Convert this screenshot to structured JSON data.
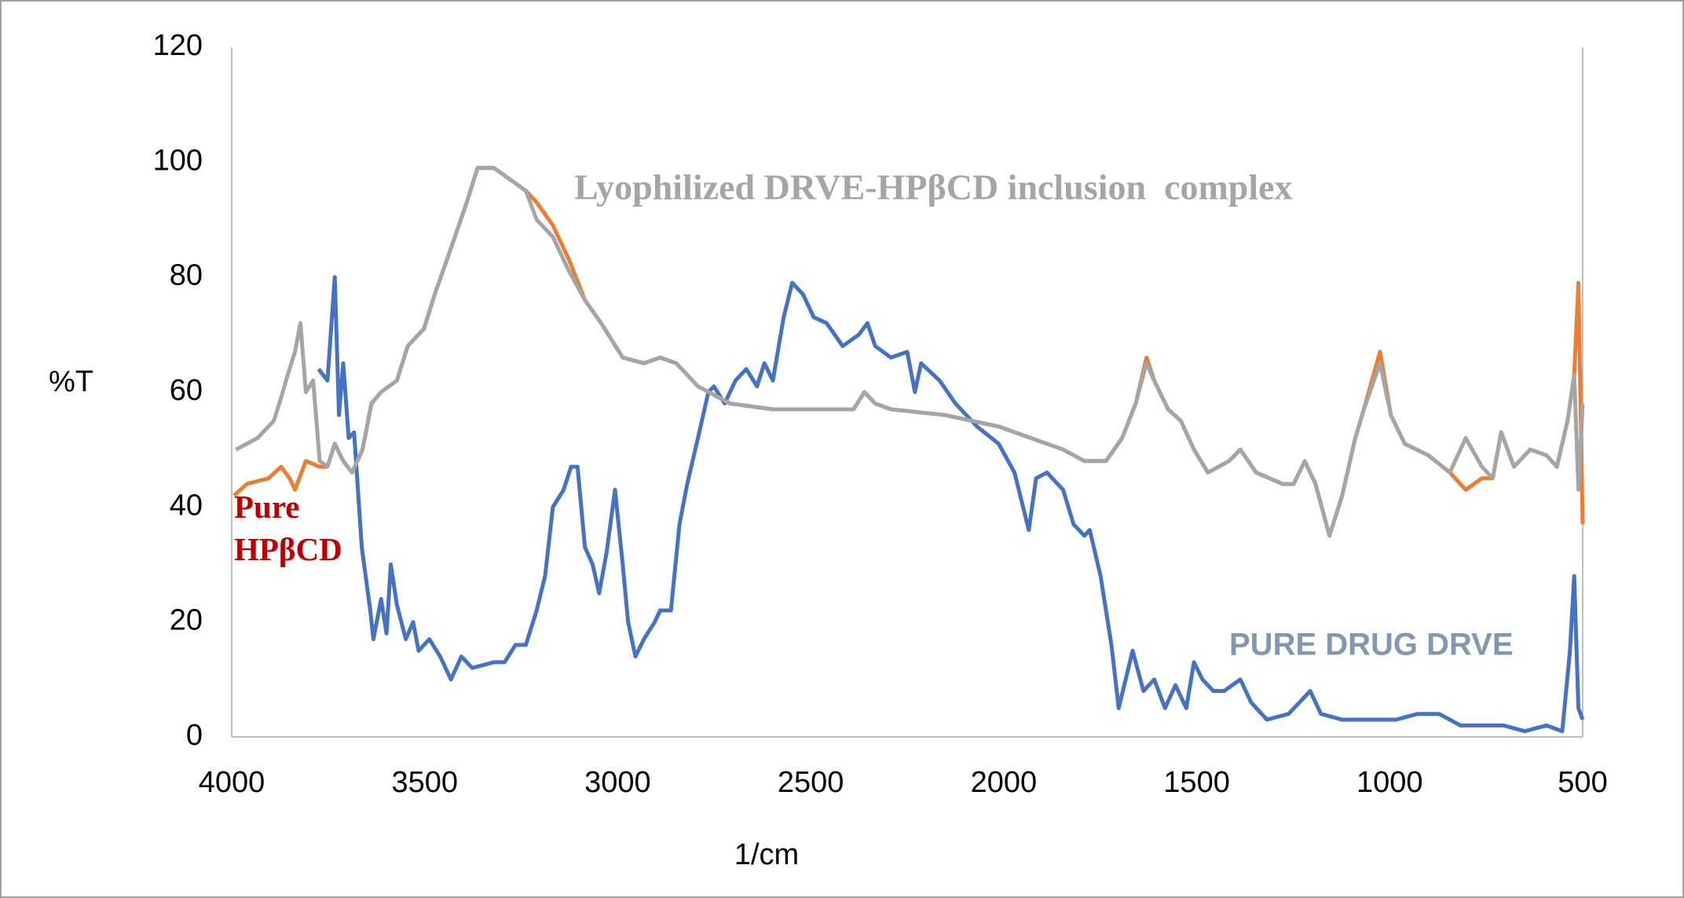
{
  "chart_data": {
    "type": "line",
    "xlabel": "1/cm",
    "ylabel": "%T",
    "xlim": [
      4000,
      500
    ],
    "ylim": [
      0,
      120
    ],
    "xticks": [
      4000,
      3500,
      3000,
      2500,
      2000,
      1500,
      1000,
      500
    ],
    "yticks": [
      0,
      20,
      40,
      60,
      80,
      100,
      120
    ],
    "grid": false,
    "series": [
      {
        "name": "PURE DRUG DRVE",
        "color": "#4472c4",
        "x": [
          3775,
          3752,
          3733,
          3722,
          3711,
          3697,
          3683,
          3663,
          3641,
          3633,
          3613,
          3599,
          3588,
          3572,
          3549,
          3530,
          3516,
          3488,
          3460,
          3432,
          3405,
          3377,
          3321,
          3293,
          3265,
          3238,
          3210,
          3188,
          3168,
          3140,
          3121,
          3104,
          3085,
          3065,
          3048,
          3029,
          3007,
          2987,
          2973,
          2954,
          2932,
          2904,
          2890,
          2862,
          2840,
          2820,
          2792,
          2765,
          2751,
          2723,
          2695,
          2667,
          2639,
          2620,
          2598,
          2570,
          2548,
          2520,
          2492,
          2459,
          2417,
          2375,
          2353,
          2333,
          2292,
          2250,
          2230,
          2214,
          2166,
          2125,
          2069,
          2013,
          1972,
          1935,
          1916,
          1888,
          1846,
          1819,
          1791,
          1777,
          1749,
          1721,
          1702,
          1666,
          1638,
          1610,
          1582,
          1555,
          1527,
          1507,
          1485,
          1457,
          1429,
          1387,
          1359,
          1318,
          1262,
          1206,
          1178,
          1123,
          1067,
          983,
          928,
          872,
          816,
          761,
          705,
          650,
          594,
          553,
          533,
          522,
          511,
          500
        ],
        "values": [
          64,
          62,
          80,
          56,
          65,
          52,
          53,
          33,
          22,
          17,
          24,
          18,
          30,
          23,
          17,
          20,
          15,
          17,
          14,
          10,
          14,
          12,
          13,
          13,
          16,
          16,
          22,
          28,
          40,
          43,
          47,
          47,
          33,
          30,
          25,
          32,
          43,
          30,
          20,
          14,
          17,
          20,
          22,
          22,
          37,
          44,
          52,
          60,
          61,
          58,
          62,
          64,
          61,
          65,
          62,
          73,
          79,
          77,
          73,
          72,
          68,
          70,
          72,
          68,
          66,
          67,
          60,
          65,
          62,
          58,
          54,
          51,
          46,
          36,
          45,
          46,
          43,
          37,
          35,
          36,
          28,
          16,
          5,
          15,
          8,
          10,
          5,
          9,
          5,
          13,
          10,
          8,
          8,
          10,
          6,
          3,
          4,
          8,
          4,
          3,
          3,
          3,
          4,
          4,
          2,
          2,
          2,
          1,
          2,
          1,
          15,
          28,
          5,
          3
        ]
      },
      {
        "name": "Pure HPβCD",
        "color": "#ed7d31",
        "x": [
          3994,
          3961,
          3905,
          3872,
          3850,
          3836,
          3808,
          3772,
          3752,
          3733,
          3711,
          3688,
          3661,
          3638,
          3613,
          3572,
          3544,
          3502,
          3474,
          3432,
          3391,
          3363,
          3321,
          3279,
          3238,
          3210,
          3168,
          3126,
          3085,
          3043,
          2987,
          2932,
          2890,
          2848,
          2792,
          2709,
          2598,
          2459,
          2389,
          2361,
          2333,
          2292,
          2152,
          2013,
          1930,
          1846,
          1791,
          1735,
          1693,
          1658,
          1630,
          1610,
          1574,
          1541,
          1507,
          1471,
          1416,
          1387,
          1346,
          1277,
          1249,
          1220,
          1192,
          1156,
          1123,
          1089,
          1067,
          1025,
          997,
          961,
          900,
          844,
          803,
          761,
          733,
          711,
          678,
          636,
          594,
          567,
          539,
          522,
          511,
          500
        ],
        "values": [
          42,
          44,
          45,
          47,
          45,
          43,
          48,
          47,
          47,
          51,
          48,
          46,
          50,
          58,
          60,
          62,
          68,
          71,
          77,
          85,
          93,
          99,
          99,
          97,
          95,
          93,
          89,
          83,
          76,
          72,
          66,
          65,
          66,
          65,
          61,
          58,
          57,
          57,
          57,
          60,
          58,
          57,
          56,
          54,
          52,
          50,
          48,
          48,
          52,
          58,
          66,
          62,
          57,
          55,
          50,
          46,
          48,
          50,
          46,
          44,
          44,
          48,
          44,
          35,
          42,
          52,
          57,
          67,
          56,
          51,
          49,
          46,
          43,
          45,
          45,
          53,
          47,
          50,
          49,
          47,
          55,
          63,
          79,
          37
        ]
      },
      {
        "name": "Lyophilized DRVE-HPβCD inclusion  complex",
        "color": "#a5a5a5",
        "x": [
          3989,
          3933,
          3891,
          3872,
          3855,
          3836,
          3822,
          3808,
          3789,
          3772,
          3752,
          3733,
          3711,
          3688,
          3661,
          3638,
          3613,
          3572,
          3544,
          3502,
          3474,
          3432,
          3391,
          3363,
          3321,
          3279,
          3238,
          3210,
          3168,
          3126,
          3085,
          3043,
          2987,
          2932,
          2890,
          2848,
          2792,
          2709,
          2598,
          2459,
          2389,
          2361,
          2333,
          2292,
          2152,
          2013,
          1930,
          1846,
          1791,
          1735,
          1693,
          1658,
          1630,
          1610,
          1574,
          1541,
          1507,
          1471,
          1416,
          1387,
          1346,
          1277,
          1249,
          1220,
          1192,
          1156,
          1123,
          1089,
          1067,
          1025,
          997,
          961,
          900,
          844,
          803,
          761,
          733,
          711,
          678,
          636,
          594,
          567,
          539,
          522,
          511,
          500
        ],
        "values": [
          50,
          52,
          55,
          59,
          63,
          67,
          72,
          60,
          62,
          48,
          47,
          51,
          48,
          46,
          50,
          58,
          60,
          62,
          68,
          71,
          77,
          85,
          93,
          99,
          99,
          97,
          95,
          90,
          87,
          81,
          76,
          72,
          66,
          65,
          66,
          65,
          61,
          58,
          57,
          57,
          57,
          60,
          58,
          57,
          56,
          54,
          52,
          50,
          48,
          48,
          52,
          58,
          65,
          62,
          57,
          55,
          50,
          46,
          48,
          50,
          46,
          44,
          44,
          48,
          44,
          35,
          42,
          52,
          57,
          65,
          56,
          51,
          49,
          46,
          52,
          47,
          45,
          53,
          47,
          50,
          49,
          47,
          55,
          63,
          43,
          58
        ]
      }
    ]
  }
}
